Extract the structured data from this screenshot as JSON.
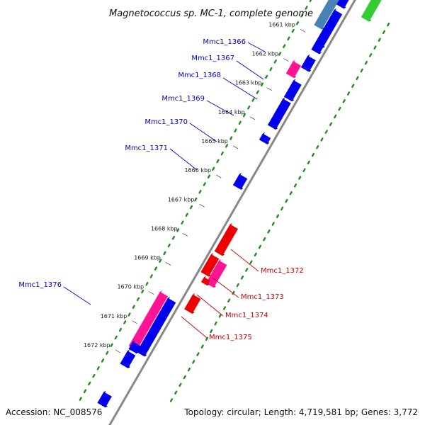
{
  "title": "Magnetococcus sp. MC-1, complete genome",
  "footer": {
    "accession": "Accession: NC_008576",
    "summary": "Topology: circular; Length: 4,719,581 bp; Genes: 3,772"
  },
  "ticks": [
    {
      "label": "1661 kbp"
    },
    {
      "label": "1662 kbp"
    },
    {
      "label": "1663 kbp"
    },
    {
      "label": "1664 kbp"
    },
    {
      "label": "1665 kbp"
    },
    {
      "label": "1666 kbp"
    },
    {
      "label": "1667 kbp"
    },
    {
      "label": "1668 kbp"
    },
    {
      "label": "1669 kbp"
    },
    {
      "label": "1670 kbp"
    },
    {
      "label": "1671 kbp"
    },
    {
      "label": "1672 kbp"
    }
  ],
  "gene_labels": {
    "forward": [
      "Mmc1_1366",
      "Mmc1_1367",
      "Mmc1_1368",
      "Mmc1_1369",
      "Mmc1_1370",
      "Mmc1_1371",
      "Mmc1_1376"
    ],
    "reverse": [
      "Mmc1_1372",
      "Mmc1_1373",
      "Mmc1_1374",
      "Mmc1_1375"
    ]
  },
  "colors": {
    "forward_gene": "#0000ee",
    "reverse_gene": "#ee0000",
    "highlight_gene": "#ff1493",
    "rna_gene": "#4682b4",
    "other_gene": "#33cc33",
    "backbone": "#888888",
    "gc_dots": "#228b22",
    "forward_label": "#0000cc",
    "reverse_label": "#cc0000"
  }
}
